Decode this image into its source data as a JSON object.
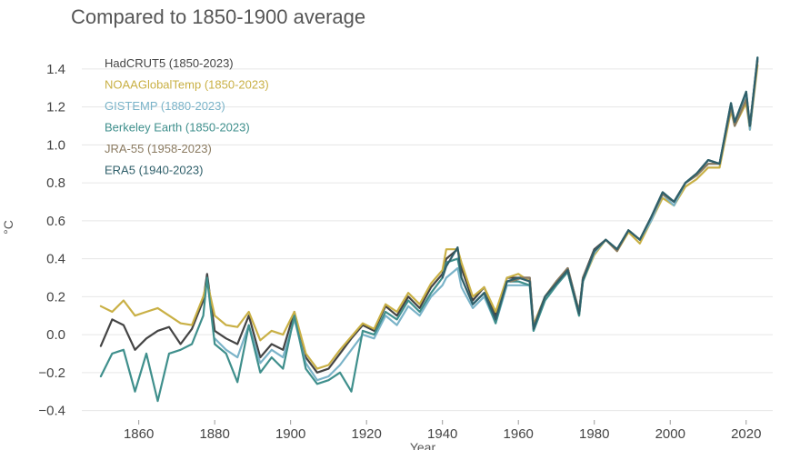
{
  "chart_data": {
    "type": "line",
    "title": "",
    "subtitle": "Compared to 1850-1900 average",
    "xlabel": "Year",
    "ylabel": "°C",
    "xlim": [
      1845,
      2027
    ],
    "ylim": [
      -0.45,
      1.5
    ],
    "yticks": [
      -0.4,
      -0.2,
      0.0,
      0.2,
      0.4,
      0.6,
      0.8,
      1.0,
      1.2,
      1.4
    ],
    "ytick_labels": [
      "−0.4",
      "−0.2",
      "0.0",
      "0.2",
      "0.4",
      "0.6",
      "0.8",
      "1.0",
      "1.2",
      "1.4"
    ],
    "xticks": [
      1860,
      1880,
      1900,
      1920,
      1940,
      1960,
      1980,
      2000,
      2020
    ],
    "grid": true,
    "legend_position": "top-left",
    "series": [
      {
        "name": "HadCRUT5 (1850-2023)",
        "color": "#444444",
        "x": [
          1850,
          1853,
          1856,
          1859,
          1862,
          1865,
          1868,
          1871,
          1874,
          1877,
          1878,
          1880,
          1883,
          1886,
          1889,
          1892,
          1895,
          1898,
          1901,
          1904,
          1907,
          1910,
          1913,
          1916,
          1919,
          1922,
          1925,
          1928,
          1931,
          1934,
          1937,
          1940,
          1941,
          1944,
          1945,
          1948,
          1951,
          1954,
          1957,
          1960,
          1963,
          1964,
          1967,
          1970,
          1973,
          1976,
          1977,
          1980,
          1983,
          1986,
          1989,
          1992,
          1995,
          1998,
          2001,
          2004,
          2007,
          2010,
          2013,
          2016,
          2017,
          2020,
          2021,
          2023
        ],
        "values": [
          -0.06,
          0.08,
          0.05,
          -0.08,
          -0.02,
          0.02,
          0.04,
          -0.05,
          0.03,
          0.18,
          0.32,
          0.02,
          -0.02,
          -0.05,
          0.1,
          -0.12,
          -0.05,
          -0.08,
          0.12,
          -0.12,
          -0.2,
          -0.18,
          -0.1,
          -0.02,
          0.05,
          0.02,
          0.15,
          0.1,
          0.2,
          0.14,
          0.25,
          0.32,
          0.4,
          0.45,
          0.35,
          0.18,
          0.25,
          0.1,
          0.3,
          0.3,
          0.3,
          0.05,
          0.2,
          0.28,
          0.35,
          0.12,
          0.3,
          0.45,
          0.5,
          0.45,
          0.55,
          0.5,
          0.62,
          0.75,
          0.7,
          0.8,
          0.85,
          0.92,
          0.9,
          1.2,
          1.12,
          1.25,
          1.1,
          1.45
        ]
      },
      {
        "name": "NOAAGlobalTemp (1850-2023)",
        "color": "#c9b045",
        "x": [
          1850,
          1853,
          1856,
          1859,
          1862,
          1865,
          1868,
          1871,
          1874,
          1877,
          1878,
          1880,
          1883,
          1886,
          1889,
          1892,
          1895,
          1898,
          1901,
          1904,
          1907,
          1910,
          1913,
          1916,
          1919,
          1922,
          1925,
          1928,
          1931,
          1934,
          1937,
          1940,
          1941,
          1944,
          1945,
          1948,
          1951,
          1954,
          1957,
          1960,
          1963,
          1964,
          1967,
          1970,
          1973,
          1976,
          1977,
          1980,
          1983,
          1986,
          1989,
          1992,
          1995,
          1998,
          2001,
          2004,
          2007,
          2010,
          2013,
          2016,
          2017,
          2020,
          2021,
          2023
        ],
        "values": [
          0.15,
          0.12,
          0.18,
          0.1,
          0.12,
          0.14,
          0.1,
          0.06,
          0.05,
          0.2,
          0.28,
          0.1,
          0.05,
          0.04,
          0.12,
          -0.03,
          0.02,
          0.0,
          0.12,
          -0.1,
          -0.18,
          -0.16,
          -0.08,
          -0.01,
          0.06,
          0.03,
          0.16,
          0.12,
          0.22,
          0.16,
          0.27,
          0.34,
          0.45,
          0.45,
          0.38,
          0.2,
          0.25,
          0.12,
          0.3,
          0.32,
          0.28,
          0.05,
          0.2,
          0.28,
          0.33,
          0.1,
          0.28,
          0.42,
          0.5,
          0.44,
          0.54,
          0.48,
          0.6,
          0.72,
          0.68,
          0.78,
          0.82,
          0.88,
          0.88,
          1.18,
          1.1,
          1.22,
          1.08,
          1.42
        ]
      },
      {
        "name": "GISTEMP (1880-2023)",
        "color": "#7ab3c8",
        "x": [
          1880,
          1883,
          1886,
          1889,
          1892,
          1895,
          1898,
          1901,
          1904,
          1907,
          1910,
          1913,
          1916,
          1919,
          1922,
          1925,
          1928,
          1931,
          1934,
          1937,
          1940,
          1941,
          1944,
          1945,
          1948,
          1951,
          1954,
          1957,
          1960,
          1963,
          1964,
          1967,
          1970,
          1973,
          1976,
          1977,
          1980,
          1983,
          1986,
          1989,
          1992,
          1995,
          1998,
          2001,
          2004,
          2007,
          2010,
          2013,
          2016,
          2017,
          2020,
          2021,
          2023
        ],
        "values": [
          -0.02,
          -0.08,
          -0.12,
          0.05,
          -0.15,
          -0.08,
          -0.12,
          0.08,
          -0.15,
          -0.24,
          -0.22,
          -0.16,
          -0.08,
          0.0,
          -0.02,
          0.1,
          0.05,
          0.15,
          0.1,
          0.2,
          0.26,
          0.3,
          0.35,
          0.25,
          0.14,
          0.2,
          0.06,
          0.26,
          0.26,
          0.26,
          0.02,
          0.18,
          0.26,
          0.33,
          0.1,
          0.28,
          0.43,
          0.5,
          0.45,
          0.55,
          0.5,
          0.6,
          0.74,
          0.68,
          0.8,
          0.84,
          0.9,
          0.9,
          1.2,
          1.1,
          1.25,
          1.08,
          1.45
        ]
      },
      {
        "name": "Berkeley Earth (1850-2023)",
        "color": "#3f8f8c",
        "x": [
          1850,
          1853,
          1856,
          1859,
          1862,
          1865,
          1868,
          1871,
          1874,
          1877,
          1878,
          1880,
          1883,
          1886,
          1889,
          1892,
          1895,
          1898,
          1901,
          1904,
          1907,
          1910,
          1913,
          1916,
          1919,
          1922,
          1925,
          1928,
          1931,
          1934,
          1937,
          1940,
          1941,
          1944,
          1945,
          1948,
          1951,
          1954,
          1957,
          1960,
          1963,
          1964,
          1967,
          1970,
          1973,
          1976,
          1977,
          1980,
          1983,
          1986,
          1989,
          1992,
          1995,
          1998,
          2001,
          2004,
          2007,
          2010,
          2013,
          2016,
          2017,
          2020,
          2021,
          2023
        ],
        "values": [
          -0.22,
          -0.1,
          -0.08,
          -0.3,
          -0.1,
          -0.35,
          -0.1,
          -0.08,
          -0.05,
          0.1,
          0.3,
          -0.05,
          -0.1,
          -0.25,
          0.05,
          -0.2,
          -0.12,
          -0.18,
          0.1,
          -0.18,
          -0.26,
          -0.24,
          -0.2,
          -0.3,
          0.02,
          0.0,
          0.12,
          0.08,
          0.18,
          0.12,
          0.22,
          0.3,
          0.38,
          0.4,
          0.3,
          0.16,
          0.22,
          0.06,
          0.28,
          0.28,
          0.26,
          0.02,
          0.18,
          0.26,
          0.33,
          0.1,
          0.28,
          0.44,
          0.5,
          0.45,
          0.55,
          0.5,
          0.62,
          0.75,
          0.7,
          0.8,
          0.85,
          0.92,
          0.9,
          1.22,
          1.12,
          1.28,
          1.1,
          1.46
        ]
      },
      {
        "name": "JRA-55 (1958-2023)",
        "color": "#8a7a60",
        "x": [
          1958,
          1961,
          1963,
          1964,
          1967,
          1970,
          1973,
          1976,
          1977,
          1980,
          1983,
          1986,
          1989,
          1992,
          1995,
          1998,
          2001,
          2004,
          2007,
          2010,
          2013,
          2016,
          2017,
          2020,
          2021,
          2023
        ],
        "values": [
          0.28,
          0.3,
          0.3,
          0.04,
          0.2,
          0.28,
          0.35,
          0.12,
          0.3,
          0.44,
          0.5,
          0.44,
          0.55,
          0.5,
          0.62,
          0.74,
          0.7,
          0.8,
          0.84,
          0.9,
          0.9,
          1.2,
          1.1,
          1.24,
          1.1,
          1.44
        ]
      },
      {
        "name": "ERA5 (1940-2023)",
        "color": "#2f5f6a",
        "x": [
          1940,
          1941,
          1944,
          1945,
          1948,
          1951,
          1954,
          1957,
          1960,
          1963,
          1964,
          1967,
          1970,
          1973,
          1976,
          1977,
          1980,
          1983,
          1986,
          1989,
          1992,
          1995,
          1998,
          2001,
          2004,
          2007,
          2010,
          2013,
          2016,
          2017,
          2020,
          2021,
          2023
        ],
        "values": [
          0.3,
          0.36,
          0.46,
          0.3,
          0.16,
          0.22,
          0.08,
          0.28,
          0.3,
          0.28,
          0.03,
          0.2,
          0.27,
          0.34,
          0.11,
          0.29,
          0.44,
          0.5,
          0.45,
          0.55,
          0.5,
          0.62,
          0.75,
          0.7,
          0.8,
          0.85,
          0.92,
          0.9,
          1.22,
          1.12,
          1.28,
          1.1,
          1.46
        ]
      }
    ]
  }
}
